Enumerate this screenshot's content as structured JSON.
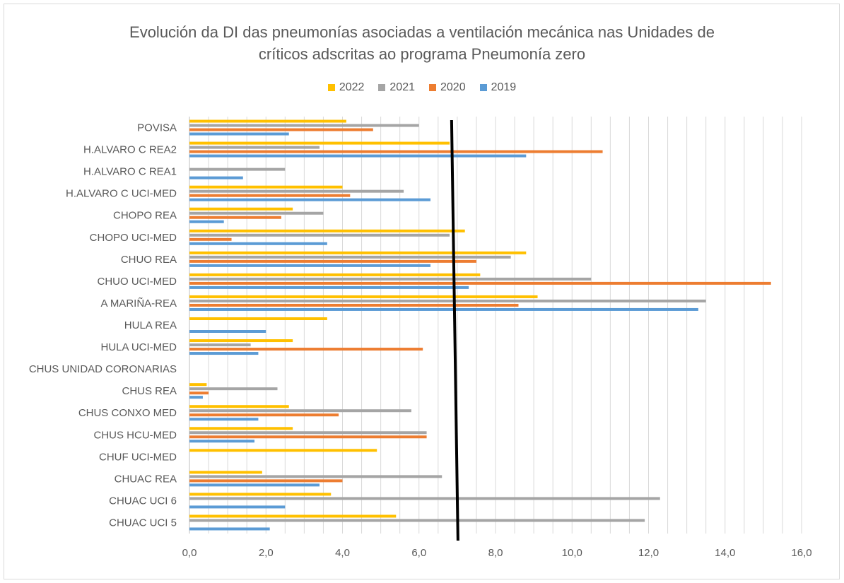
{
  "chart_data": {
    "type": "bar",
    "orientation": "horizontal",
    "title": "Evolución da DI das pneumonías asociadas a ventilación mecánica nas Unidades de críticos adscritas ao programa Pneumonía zero",
    "title_lines": [
      "Evolución da DI das pneumonías asociadas a ventilación mecánica nas Unidades de",
      "críticos adscritas ao programa Pneumonía zero"
    ],
    "legend_position": "top",
    "grid": true,
    "xlim": [
      0,
      16
    ],
    "x_ticks": [
      "0,0",
      "2,0",
      "4,0",
      "6,0",
      "8,0",
      "10,0",
      "12,0",
      "14,0",
      "16,0"
    ],
    "reference_line_x": 7.0,
    "categories": [
      "POVISA",
      "H.ALVARO C REA2",
      "H.ALVARO C REA1",
      "H.ALVARO C UCI-MED",
      "CHOPO REA",
      "CHOPO UCI-MED",
      "CHUO REA",
      "CHUO UCI-MED",
      "A MARIÑA-REA",
      "HULA REA",
      "HULA UCI-MED",
      "CHUS UNIDAD CORONARIAS",
      "CHUS REA",
      "CHUS CONXO MED",
      "CHUS HCU-MED",
      "CHUF UCI-MED",
      "CHUAC REA",
      "CHUAC UCI 6",
      "CHUAC UCI 5"
    ],
    "series": [
      {
        "name": "2022",
        "color": "#ffc000",
        "values": [
          4.1,
          6.8,
          0,
          4.0,
          2.7,
          7.2,
          8.8,
          7.6,
          9.1,
          3.6,
          2.7,
          0,
          0.45,
          2.6,
          2.7,
          4.9,
          1.9,
          3.7,
          5.4
        ]
      },
      {
        "name": "2021",
        "color": "#a5a5a5",
        "values": [
          6.0,
          3.4,
          2.5,
          5.6,
          3.5,
          6.8,
          8.4,
          10.5,
          13.5,
          0,
          1.6,
          0,
          2.3,
          5.8,
          6.2,
          0,
          6.6,
          12.3,
          11.9
        ]
      },
      {
        "name": "2020",
        "color": "#ed7d31",
        "values": [
          4.8,
          10.8,
          0,
          4.2,
          2.4,
          1.1,
          7.5,
          15.2,
          8.6,
          0,
          6.1,
          0,
          0.5,
          3.9,
          6.2,
          0,
          4.0,
          0,
          0
        ]
      },
      {
        "name": "2019",
        "color": "#5b9bd5",
        "values": [
          2.6,
          8.8,
          1.4,
          6.3,
          0.9,
          3.6,
          6.3,
          7.3,
          13.3,
          2.0,
          1.8,
          0,
          0.35,
          1.8,
          1.7,
          0,
          3.4,
          2.5,
          2.1
        ]
      }
    ]
  }
}
